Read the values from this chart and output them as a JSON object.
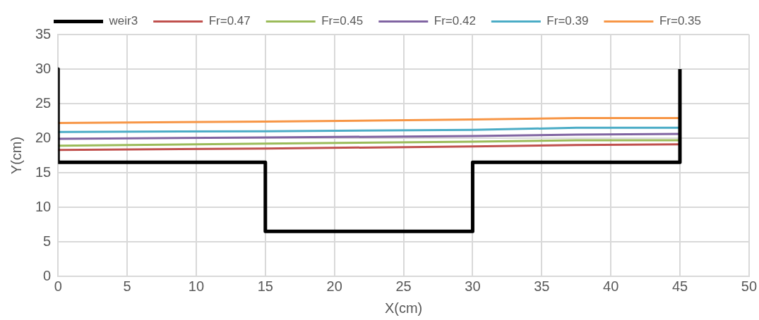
{
  "chart_data": {
    "type": "line",
    "xlabel": "X(cm)",
    "ylabel": "Y(cm)",
    "xlim": [
      0,
      50
    ],
    "xticks": [
      0,
      5,
      10,
      15,
      20,
      25,
      30,
      35,
      40,
      45,
      50
    ],
    "ylim": [
      0,
      35
    ],
    "yticks": [
      0,
      5,
      10,
      15,
      20,
      25,
      30,
      35
    ],
    "grid": true,
    "legend": "top",
    "marker": "none",
    "line_style": "solid",
    "series": [
      {
        "name": "weir3",
        "color": "#000000",
        "x": [
          0,
          0,
          15,
          15,
          30,
          30,
          45,
          45
        ],
        "values": [
          30,
          16.5,
          16.5,
          6.5,
          6.5,
          16.5,
          16.5,
          30
        ]
      },
      {
        "name": "Fr=0.47",
        "color": "#c0504d",
        "x": [
          0,
          15,
          30,
          37.5,
          45
        ],
        "values": [
          18.3,
          18.5,
          18.8,
          19.0,
          19.1
        ]
      },
      {
        "name": "Fr=0.45",
        "color": "#9bbb59",
        "x": [
          0,
          15,
          30,
          37.5,
          45
        ],
        "values": [
          18.9,
          19.2,
          19.5,
          19.7,
          19.7
        ]
      },
      {
        "name": "Fr=0.42",
        "color": "#8064a2",
        "x": [
          0,
          15,
          30,
          37.5,
          45
        ],
        "values": [
          19.9,
          20.1,
          20.3,
          20.5,
          20.6
        ]
      },
      {
        "name": "Fr=0.39",
        "color": "#4bacc6",
        "x": [
          0,
          15,
          30,
          37.5,
          45
        ],
        "values": [
          20.9,
          21.0,
          21.2,
          21.5,
          21.5
        ]
      },
      {
        "name": "Fr=0.35",
        "color": "#f79646",
        "x": [
          0,
          15,
          30,
          37.5,
          45
        ],
        "values": [
          22.2,
          22.4,
          22.7,
          22.9,
          22.9
        ]
      }
    ]
  }
}
